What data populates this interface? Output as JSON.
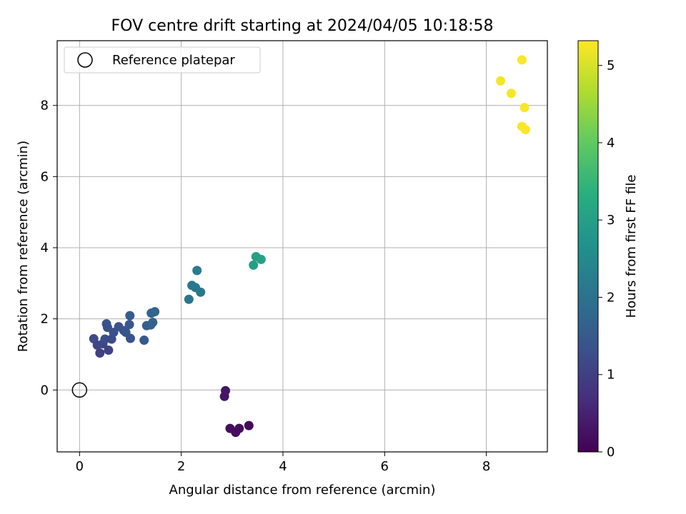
{
  "chart_data": {
    "type": "scatter",
    "title": "FOV centre drift starting at 2024/04/05 10:18:58",
    "xlabel": "Angular distance from reference (arcmin)",
    "ylabel": "Rotation from reference (arcmin)",
    "colorbar_label": "Hours from first FF file",
    "xlim": [
      -0.44,
      9.2
    ],
    "ylim": [
      -1.74,
      9.82
    ],
    "clim": [
      0,
      5.32
    ],
    "colormap": "viridis",
    "grid": true,
    "legend_position": "top-left",
    "xticks": [
      0,
      2,
      4,
      6,
      8
    ],
    "yticks": [
      0,
      2,
      4,
      6,
      8
    ],
    "cticks": [
      0,
      1,
      2,
      3,
      4,
      5
    ],
    "reference": {
      "name": "Reference platepar",
      "x": 0,
      "y": 0
    },
    "points": [
      {
        "x": 2.87,
        "y": -0.02,
        "c": 0.3
      },
      {
        "x": 2.85,
        "y": -0.18,
        "c": 0.32
      },
      {
        "x": 2.96,
        "y": -1.08,
        "c": 0.2
      },
      {
        "x": 3.07,
        "y": -1.19,
        "c": 0.15
      },
      {
        "x": 3.14,
        "y": -1.08,
        "c": 0.18
      },
      {
        "x": 3.33,
        "y": -1.0,
        "c": 0.1
      },
      {
        "x": 0.28,
        "y": 1.44,
        "c": 1.2
      },
      {
        "x": 0.35,
        "y": 1.26,
        "c": 1.1
      },
      {
        "x": 0.4,
        "y": 1.04,
        "c": 1.0
      },
      {
        "x": 0.46,
        "y": 1.3,
        "c": 1.15
      },
      {
        "x": 0.5,
        "y": 1.43,
        "c": 1.25
      },
      {
        "x": 0.53,
        "y": 1.86,
        "c": 1.35
      },
      {
        "x": 0.55,
        "y": 1.76,
        "c": 1.32
      },
      {
        "x": 0.57,
        "y": 1.12,
        "c": 1.05
      },
      {
        "x": 0.63,
        "y": 1.43,
        "c": 1.2
      },
      {
        "x": 0.67,
        "y": 1.62,
        "c": 1.28
      },
      {
        "x": 0.77,
        "y": 1.78,
        "c": 1.33
      },
      {
        "x": 0.87,
        "y": 1.67,
        "c": 1.38
      },
      {
        "x": 0.91,
        "y": 1.62,
        "c": 1.4
      },
      {
        "x": 0.98,
        "y": 1.84,
        "c": 1.45
      },
      {
        "x": 0.99,
        "y": 2.09,
        "c": 1.55
      },
      {
        "x": 1.0,
        "y": 1.45,
        "c": 1.35
      },
      {
        "x": 1.27,
        "y": 1.4,
        "c": 1.5
      },
      {
        "x": 1.32,
        "y": 1.81,
        "c": 1.6
      },
      {
        "x": 1.4,
        "y": 1.83,
        "c": 1.62
      },
      {
        "x": 1.41,
        "y": 2.16,
        "c": 1.7
      },
      {
        "x": 1.44,
        "y": 1.9,
        "c": 1.66
      },
      {
        "x": 1.48,
        "y": 2.2,
        "c": 1.75
      },
      {
        "x": 2.15,
        "y": 2.55,
        "c": 2.05
      },
      {
        "x": 2.21,
        "y": 2.94,
        "c": 2.1
      },
      {
        "x": 2.28,
        "y": 2.88,
        "c": 2.15
      },
      {
        "x": 2.31,
        "y": 3.36,
        "c": 2.2
      },
      {
        "x": 2.38,
        "y": 2.75,
        "c": 2.12
      },
      {
        "x": 3.42,
        "y": 3.51,
        "c": 2.95
      },
      {
        "x": 3.47,
        "y": 3.75,
        "c": 3.0
      },
      {
        "x": 3.57,
        "y": 3.67,
        "c": 3.02
      },
      {
        "x": 8.28,
        "y": 8.69,
        "c": 5.25
      },
      {
        "x": 8.49,
        "y": 8.34,
        "c": 5.26
      },
      {
        "x": 8.7,
        "y": 9.28,
        "c": 5.3
      },
      {
        "x": 8.7,
        "y": 7.41,
        "c": 5.28
      },
      {
        "x": 8.75,
        "y": 7.94,
        "c": 5.29
      },
      {
        "x": 8.77,
        "y": 7.32,
        "c": 5.31
      }
    ]
  }
}
